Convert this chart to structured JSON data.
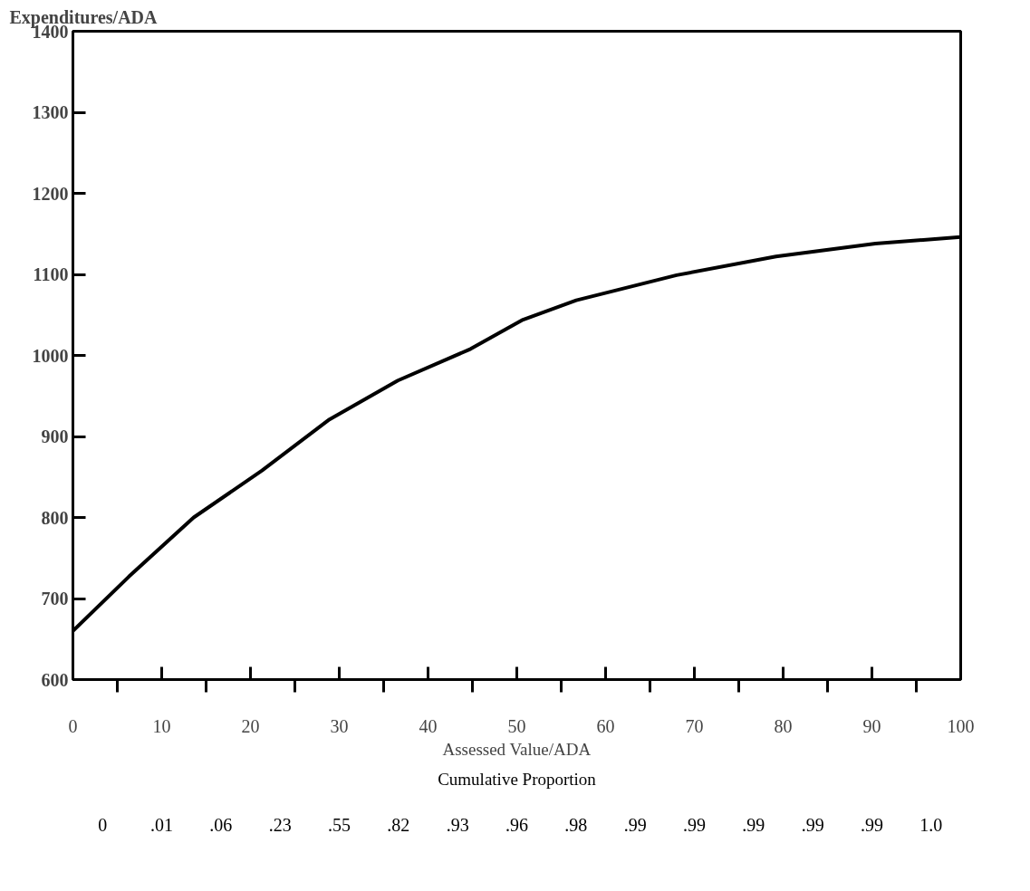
{
  "chart_data": {
    "type": "line",
    "ylabel": "Expenditures/ADA",
    "xlabel": "Assessed Value/ADA",
    "x": [
      0,
      6.3,
      13.6,
      21.3,
      28.9,
      36.6,
      44.8,
      50.7,
      56.7,
      68.0,
      79.2,
      90.4,
      100
    ],
    "series": [
      {
        "color": "#000000",
        "values": [
          660,
          727,
          800,
          858,
          921,
          969,
          1008,
          1044,
          1068,
          1099,
          1122,
          1138,
          1146
        ]
      }
    ],
    "xlim": [
      0,
      100
    ],
    "ylim": [
      600,
      1400
    ],
    "yticks": [
      600,
      700,
      800,
      900,
      1000,
      1100,
      1200,
      1300,
      1400
    ],
    "xticks": [
      0,
      {
        "value": 5,
        "label": null
      },
      10,
      {
        "value": 15,
        "label": null
      },
      20,
      {
        "value": 25,
        "label": null
      },
      30,
      {
        "value": 35,
        "label": null
      },
      40,
      {
        "value": 45,
        "label": null
      },
      50,
      {
        "value": 55,
        "label": null
      },
      60,
      {
        "value": 65,
        "label": null
      },
      70,
      {
        "value": 75,
        "label": null
      },
      80,
      {
        "value": 85,
        "label": null
      },
      90,
      {
        "value": 95,
        "label": null
      },
      100
    ],
    "annotations": [
      "Cumulative Proportion",
      "0",
      ".01",
      ".06",
      ".23",
      ".55",
      ".82",
      ".93",
      ".96",
      ".98",
      ".99",
      ".99",
      ".99",
      ".99",
      ".99",
      "1.0"
    ],
    "grid": false,
    "marker": "none",
    "line_style": "solid"
  }
}
